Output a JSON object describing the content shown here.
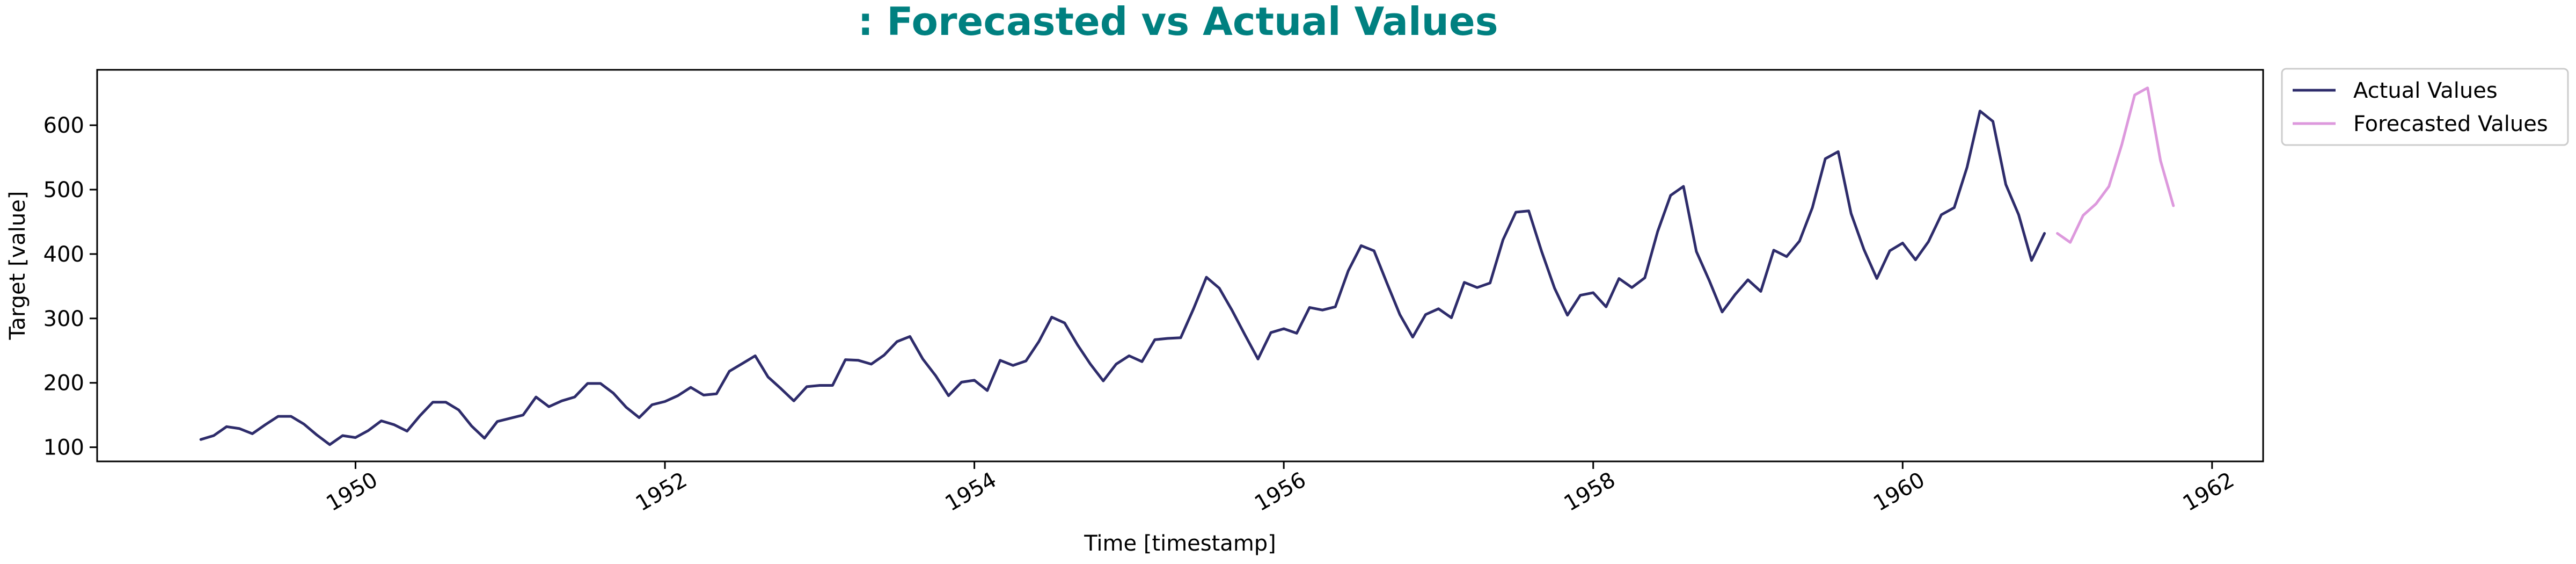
{
  "chart_data": {
    "type": "line",
    "title": ": Forecasted vs Actual Values",
    "xlabel": "Time [timestamp]",
    "ylabel": "Target [value]",
    "xlim": [
      1948.33,
      1962.33
    ],
    "ylim": [
      78,
      686
    ],
    "x_ticks": [
      1950,
      1952,
      1954,
      1956,
      1958,
      1960,
      1962
    ],
    "y_ticks": [
      100,
      200,
      300,
      400,
      500,
      600
    ],
    "grid": false,
    "legend_position": "outside-top-right",
    "title_color": "#008080",
    "series": [
      {
        "name": "Actual Values",
        "color": "#2e2c6b",
        "start": "1949-01",
        "frequency": "monthly",
        "values": [
          112,
          118,
          132,
          129,
          121,
          135,
          148,
          148,
          136,
          119,
          104,
          118,
          115,
          126,
          141,
          135,
          125,
          149,
          170,
          170,
          158,
          133,
          114,
          140,
          145,
          150,
          178,
          163,
          172,
          178,
          199,
          199,
          184,
          162,
          146,
          166,
          171,
          180,
          193,
          181,
          183,
          218,
          230,
          242,
          209,
          191,
          172,
          194,
          196,
          196,
          236,
          235,
          229,
          243,
          264,
          272,
          237,
          211,
          180,
          201,
          204,
          188,
          235,
          227,
          234,
          264,
          302,
          293,
          259,
          229,
          203,
          229,
          242,
          233,
          267,
          269,
          270,
          315,
          364,
          347,
          312,
          274,
          237,
          278,
          284,
          277,
          317,
          313,
          318,
          374,
          413,
          405,
          355,
          306,
          271,
          306,
          315,
          301,
          356,
          348,
          355,
          422,
          465,
          467,
          404,
          347,
          305,
          336,
          340,
          318,
          362,
          348,
          363,
          435,
          491,
          505,
          404,
          359,
          310,
          337,
          360,
          342,
          406,
          396,
          420,
          472,
          548,
          559,
          463,
          407,
          362,
          405,
          417,
          391,
          419,
          461,
          472,
          535,
          622,
          606,
          508,
          461,
          390,
          432
        ]
      },
      {
        "name": "Forecasted Values",
        "color": "#dd99dd",
        "start": "1961-01",
        "frequency": "monthly",
        "values": [
          432,
          418,
          460,
          478,
          505,
          570,
          647,
          658,
          545,
          475
        ]
      }
    ]
  }
}
